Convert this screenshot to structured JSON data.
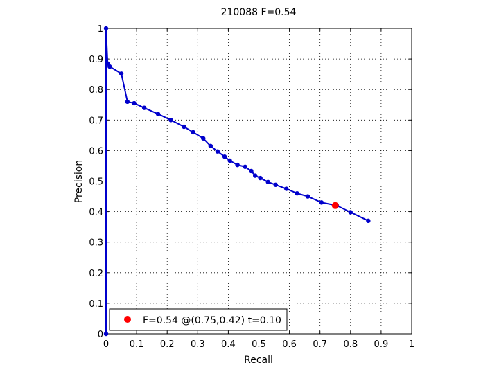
{
  "chart_data": {
    "type": "line",
    "title": "210088 F=0.54",
    "xlabel": "Recall",
    "ylabel": "Precision",
    "xlim": [
      0,
      1
    ],
    "ylim": [
      0,
      1
    ],
    "grid": true,
    "xticks": [
      "0",
      "0.1",
      "0.2",
      "0.3",
      "0.4",
      "0.5",
      "0.6",
      "0.7",
      "0.8",
      "0.9",
      "1"
    ],
    "yticks": [
      "0",
      "0.1",
      "0.2",
      "0.3",
      "0.4",
      "0.5",
      "0.6",
      "0.7",
      "0.8",
      "0.9",
      "1"
    ],
    "series": [
      {
        "color": "#0000cc",
        "points": [
          {
            "x": 0.0,
            "y": 0.0
          },
          {
            "x": 0.0,
            "y": 1.0
          },
          {
            "x": 0.005,
            "y": 0.885
          },
          {
            "x": 0.012,
            "y": 0.875
          },
          {
            "x": 0.05,
            "y": 0.852
          },
          {
            "x": 0.07,
            "y": 0.76
          },
          {
            "x": 0.092,
            "y": 0.755
          },
          {
            "x": 0.125,
            "y": 0.74
          },
          {
            "x": 0.17,
            "y": 0.72
          },
          {
            "x": 0.212,
            "y": 0.7
          },
          {
            "x": 0.255,
            "y": 0.678
          },
          {
            "x": 0.285,
            "y": 0.66
          },
          {
            "x": 0.318,
            "y": 0.64
          },
          {
            "x": 0.342,
            "y": 0.615
          },
          {
            "x": 0.365,
            "y": 0.597
          },
          {
            "x": 0.388,
            "y": 0.58
          },
          {
            "x": 0.405,
            "y": 0.567
          },
          {
            "x": 0.43,
            "y": 0.553
          },
          {
            "x": 0.455,
            "y": 0.547
          },
          {
            "x": 0.475,
            "y": 0.533
          },
          {
            "x": 0.488,
            "y": 0.518
          },
          {
            "x": 0.505,
            "y": 0.51
          },
          {
            "x": 0.53,
            "y": 0.497
          },
          {
            "x": 0.555,
            "y": 0.488
          },
          {
            "x": 0.59,
            "y": 0.475
          },
          {
            "x": 0.625,
            "y": 0.46
          },
          {
            "x": 0.66,
            "y": 0.45
          },
          {
            "x": 0.705,
            "y": 0.43
          },
          {
            "x": 0.755,
            "y": 0.42
          },
          {
            "x": 0.8,
            "y": 0.398
          },
          {
            "x": 0.858,
            "y": 0.37
          }
        ]
      }
    ],
    "highlight": {
      "x": 0.75,
      "y": 0.42,
      "color": "#ff0000"
    },
    "legend": {
      "placement": "bottom-left",
      "entries": [
        {
          "label": "F=0.54 @(0.75,0.42) t=0.10",
          "marker_color": "#ff0000"
        }
      ]
    }
  }
}
